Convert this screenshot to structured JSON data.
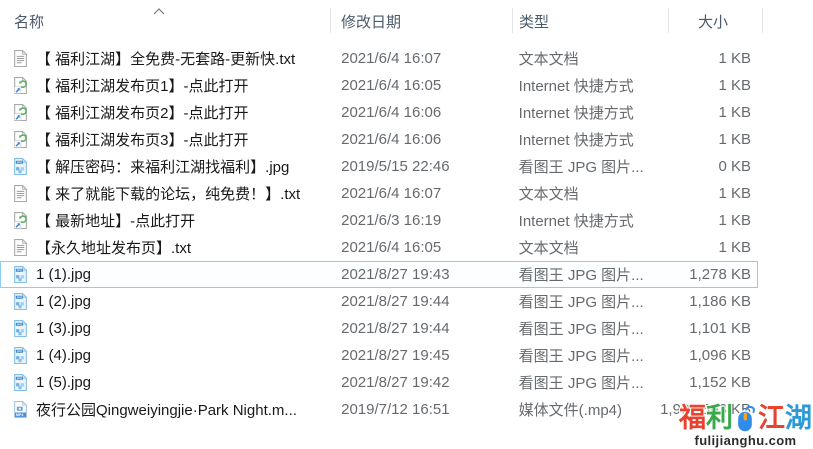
{
  "columns": [
    {
      "label": "名称",
      "sort": "ascending"
    },
    {
      "label": "修改日期"
    },
    {
      "label": "类型"
    },
    {
      "label": "大小"
    }
  ],
  "rows": [
    {
      "name": "【 福利江湖】全免费-无套路-更新快.txt",
      "icon": "text-file-icon",
      "date": "2021/6/4 16:07",
      "type": "文本文档",
      "size": "1 KB",
      "selected": false
    },
    {
      "name": "【 福利江湖发布页1】-点此打开",
      "icon": "internet-shortcut-icon",
      "date": "2021/6/4 16:05",
      "type": "Internet 快捷方式",
      "size": "1 KB",
      "selected": false
    },
    {
      "name": "【 福利江湖发布页2】-点此打开",
      "icon": "internet-shortcut-icon",
      "date": "2021/6/4 16:06",
      "type": "Internet 快捷方式",
      "size": "1 KB",
      "selected": false
    },
    {
      "name": "【 福利江湖发布页3】-点此打开",
      "icon": "internet-shortcut-icon",
      "date": "2021/6/4 16:06",
      "type": "Internet 快捷方式",
      "size": "1 KB",
      "selected": false
    },
    {
      "name": "【 解压密码：来福利江湖找福利】.jpg",
      "icon": "jpg-image-icon",
      "date": "2019/5/15 22:46",
      "type": "看图王 JPG 图片...",
      "size": "0 KB",
      "selected": false
    },
    {
      "name": "【 来了就能下载的论坛，纯免费！】.txt",
      "icon": "text-file-icon",
      "date": "2021/6/4 16:07",
      "type": "文本文档",
      "size": "1 KB",
      "selected": false
    },
    {
      "name": "【 最新地址】-点此打开",
      "icon": "internet-shortcut-icon",
      "date": "2021/6/3 16:19",
      "type": "Internet 快捷方式",
      "size": "1 KB",
      "selected": false
    },
    {
      "name": "【永久地址发布页】.txt",
      "icon": "text-file-icon",
      "date": "2021/6/4 16:05",
      "type": "文本文档",
      "size": "1 KB",
      "selected": false
    },
    {
      "name": "1 (1).jpg",
      "icon": "jpg-image-icon",
      "date": "2021/8/27 19:43",
      "type": "看图王 JPG 图片...",
      "size": "1,278 KB",
      "selected": true
    },
    {
      "name": "1 (2).jpg",
      "icon": "jpg-image-icon",
      "date": "2021/8/27 19:44",
      "type": "看图王 JPG 图片...",
      "size": "1,186 KB",
      "selected": false
    },
    {
      "name": "1 (3).jpg",
      "icon": "jpg-image-icon",
      "date": "2021/8/27 19:44",
      "type": "看图王 JPG 图片...",
      "size": "1,101 KB",
      "selected": false
    },
    {
      "name": "1 (4).jpg",
      "icon": "jpg-image-icon",
      "date": "2021/8/27 19:45",
      "type": "看图王 JPG 图片...",
      "size": "1,096 KB",
      "selected": false
    },
    {
      "name": "1 (5).jpg",
      "icon": "jpg-image-icon",
      "date": "2021/8/27 19:42",
      "type": "看图王 JPG 图片...",
      "size": "1,152 KB",
      "selected": false
    },
    {
      "name": "夜行公园Qingweiyingjie·Park Night.m...",
      "icon": "mp4-video-icon",
      "date": "2019/7/12 16:51",
      "type": "媒体文件(.mp4)",
      "size": "1,903,863 KB",
      "selected": false
    }
  ],
  "watermark": {
    "chars": [
      "福",
      "利",
      "江",
      "湖"
    ],
    "domain": "fulijianghu.com",
    "colors": {
      "red": "#e8432f",
      "green": "#3aa94c",
      "blue": "#2d9ad7",
      "mouse_body": "#2e8ceb",
      "mouse_wheel": "#f6a41d",
      "domain_text": "#2c2c2c"
    }
  },
  "colors": {
    "selection_border": "#90ccf0",
    "header_text": "#4c5b6b",
    "file_name_text": "#191919",
    "secondary_text": "#666a6e"
  }
}
